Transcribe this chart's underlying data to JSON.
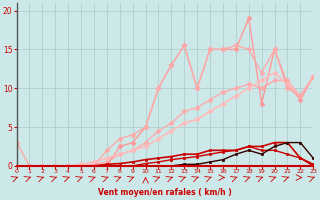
{
  "xlabel": "Vent moyen/en rafales ( km/h )",
  "xlim": [
    0,
    23
  ],
  "ylim": [
    0,
    21
  ],
  "yticks": [
    0,
    5,
    10,
    15,
    20
  ],
  "xticks": [
    0,
    1,
    2,
    3,
    4,
    5,
    6,
    7,
    8,
    9,
    10,
    11,
    12,
    13,
    14,
    15,
    16,
    17,
    18,
    19,
    20,
    21,
    22,
    23
  ],
  "bg_color": "#cce8e8",
  "grid_color": "#aacccc",
  "series": [
    {
      "x": [
        0,
        1,
        2,
        3,
        4,
        5,
        6,
        7,
        8,
        9,
        10,
        11,
        12,
        13,
        14,
        15,
        16,
        17,
        18,
        19,
        20,
        21,
        22,
        23
      ],
      "y": [
        3,
        0,
        0,
        0,
        0,
        0,
        0.2,
        0.5,
        1.5,
        2,
        3,
        4.5,
        5.5,
        7,
        7.5,
        8.5,
        9.5,
        10,
        10.5,
        10,
        11,
        11,
        9,
        11.5
      ],
      "color": "#ffaaaa",
      "lw": 1.0,
      "marker": "D",
      "ms": 2.5
    },
    {
      "x": [
        0,
        1,
        2,
        3,
        4,
        5,
        6,
        7,
        8,
        9,
        10,
        11,
        12,
        13,
        14,
        15,
        16,
        17,
        18,
        19,
        20,
        21,
        22,
        23
      ],
      "y": [
        0,
        0,
        0,
        0,
        0,
        0,
        0,
        0,
        2.5,
        3,
        5,
        10,
        13,
        15.5,
        10,
        15,
        15,
        15,
        19,
        8,
        15,
        10.5,
        8.5,
        11.5
      ],
      "color": "#ff9999",
      "lw": 1.0,
      "marker": "D",
      "ms": 2.5
    },
    {
      "x": [
        0,
        1,
        2,
        3,
        4,
        5,
        6,
        7,
        8,
        9,
        10,
        11,
        12,
        13,
        14,
        15,
        16,
        17,
        18,
        19,
        20,
        21,
        22,
        23
      ],
      "y": [
        0,
        0,
        0,
        0,
        0,
        0.2,
        0.5,
        1,
        1.5,
        2,
        2.5,
        3.5,
        4.5,
        5.5,
        6,
        7,
        8,
        9,
        10,
        11,
        12,
        10.5,
        9,
        11.5
      ],
      "color": "#ffbbbb",
      "lw": 1.2,
      "marker": "D",
      "ms": 2.5
    },
    {
      "x": [
        0,
        1,
        2,
        3,
        4,
        5,
        6,
        7,
        8,
        9,
        10,
        11,
        12,
        13,
        14,
        15,
        16,
        17,
        18,
        19,
        20,
        21,
        22,
        23
      ],
      "y": [
        0,
        0,
        0,
        0,
        0,
        0,
        0,
        2,
        3.5,
        4,
        5,
        10,
        13,
        15.5,
        10,
        15,
        15,
        15.5,
        15,
        12,
        15,
        10,
        9,
        11.5
      ],
      "color": "#ffaaaa",
      "lw": 1.0,
      "marker": "D",
      "ms": 2.5
    },
    {
      "x": [
        0,
        1,
        2,
        3,
        4,
        5,
        6,
        7,
        8,
        9,
        10,
        11,
        12,
        13,
        14,
        15,
        16,
        17,
        18,
        19,
        20,
        21,
        22,
        23
      ],
      "y": [
        0,
        0,
        0,
        0,
        0,
        0,
        0,
        0.2,
        0.3,
        0.5,
        0.8,
        1,
        1.2,
        1.5,
        1.5,
        2,
        2,
        2,
        2.5,
        2.5,
        3,
        3,
        1,
        0.2
      ],
      "color": "#cc0000",
      "lw": 1.2,
      "marker": "s",
      "ms": 2
    },
    {
      "x": [
        0,
        1,
        2,
        3,
        4,
        5,
        6,
        7,
        8,
        9,
        10,
        11,
        12,
        13,
        14,
        15,
        16,
        17,
        18,
        19,
        20,
        21,
        22,
        23
      ],
      "y": [
        0,
        0,
        0,
        0,
        0,
        0,
        0,
        0,
        0,
        0,
        0.3,
        0.5,
        0.8,
        1,
        1.2,
        1.5,
        1.8,
        2,
        2.5,
        2,
        2,
        1.5,
        1,
        0
      ],
      "color": "#cc0000",
      "lw": 1.0,
      "marker": "s",
      "ms": 2
    },
    {
      "x": [
        0,
        1,
        2,
        3,
        4,
        5,
        6,
        7,
        8,
        9,
        10,
        11,
        12,
        13,
        14,
        15,
        16,
        17,
        18,
        19,
        20,
        21,
        22,
        23
      ],
      "y": [
        0,
        0,
        0,
        0,
        0,
        0,
        0,
        0,
        0,
        0,
        0,
        0,
        0,
        0.2,
        0.2,
        0.5,
        0.8,
        1.5,
        2,
        1.5,
        2.5,
        3,
        3,
        1
      ],
      "color": "#330000",
      "lw": 1.0,
      "marker": "s",
      "ms": 2
    }
  ],
  "arrow_angles_deg": [
    45,
    45,
    45,
    45,
    45,
    45,
    45,
    45,
    45,
    45,
    90,
    45,
    45,
    45,
    45,
    45,
    0,
    45,
    45,
    45,
    45,
    45,
    0,
    45
  ]
}
